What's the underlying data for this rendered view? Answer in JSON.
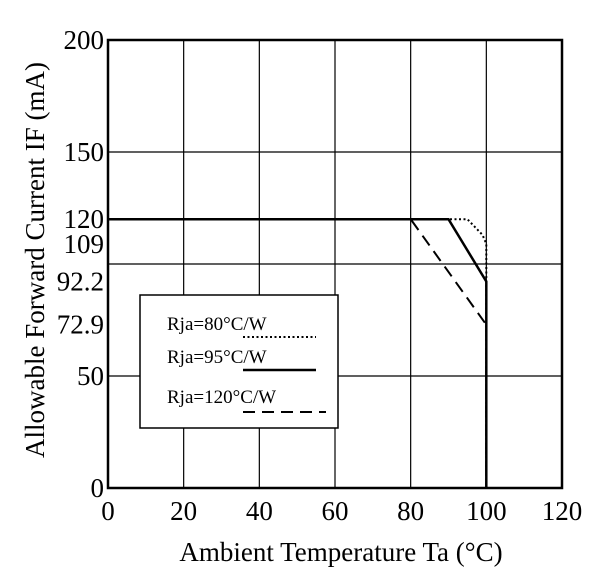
{
  "chart_data": {
    "type": "line",
    "xlabel": "Ambient Temperature Ta (°C)",
    "ylabel": "Allowable Forward Current IF (mA)",
    "xlim": [
      0,
      120
    ],
    "ylim": [
      0,
      200
    ],
    "x_ticks": [
      "0",
      "20",
      "40",
      "60",
      "80",
      "100",
      "120"
    ],
    "y_ticks": [
      "0",
      "50",
      "72.9",
      "92.2",
      "109",
      "120",
      "150",
      "200"
    ],
    "grid": true,
    "legend_placement": "lower-left",
    "series": [
      {
        "name": "Rja=80°C/W",
        "style": "dotted",
        "points": [
          [
            0,
            120
          ],
          [
            95,
            120
          ],
          [
            99,
            113
          ],
          [
            100,
            109
          ],
          [
            100,
            0
          ]
        ]
      },
      {
        "name": "Rja=95°C/W",
        "style": "solid",
        "points": [
          [
            0,
            120
          ],
          [
            90,
            120
          ],
          [
            100,
            92.2
          ],
          [
            100,
            0
          ]
        ]
      },
      {
        "name": "Rja=120°C/W",
        "style": "dashed",
        "points": [
          [
            0,
            120
          ],
          [
            80,
            120
          ],
          [
            100,
            72.9
          ],
          [
            100,
            0
          ]
        ]
      }
    ]
  }
}
